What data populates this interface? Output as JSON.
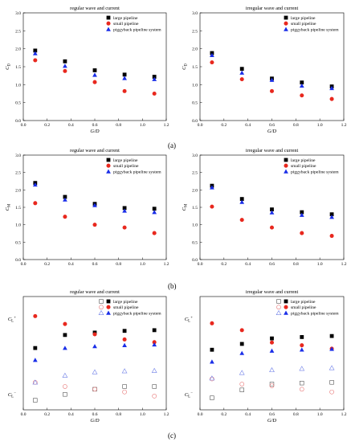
{
  "panel_labels": [
    "(a)",
    "(b)",
    "(c)"
  ],
  "chart_data": [
    {
      "type": "scatter",
      "row": "a",
      "title": "regular wave and current",
      "xlabel": "G/D",
      "ylabel": "C_D",
      "xlim": [
        0.0,
        1.2
      ],
      "ylim": [
        0.0,
        3.0
      ],
      "xticks": [
        "0.0",
        "0.2",
        "0.4",
        "0.6",
        "0.8",
        "1.0",
        "1.2"
      ],
      "yticks": [
        "0.0",
        "0.5",
        "1.0",
        "1.5",
        "2.0",
        "2.5",
        "3.0"
      ],
      "legend_position": "top-right",
      "x": [
        0.1,
        0.35,
        0.6,
        0.85,
        1.1
      ],
      "series": [
        {
          "name": "large pipeline",
          "marker": "square",
          "color": "#000000",
          "values": [
            1.95,
            1.65,
            1.4,
            1.28,
            1.22
          ]
        },
        {
          "name": "small pipeline",
          "marker": "circle",
          "color": "#e8281e",
          "values": [
            1.68,
            1.38,
            1.07,
            0.82,
            0.75
          ]
        },
        {
          "name": "piggyback pipeline system",
          "marker": "triangle",
          "color": "#1a2ee8",
          "values": [
            1.87,
            1.52,
            1.27,
            1.18,
            1.15
          ]
        }
      ]
    },
    {
      "type": "scatter",
      "row": "a",
      "title": "irregular wave and current",
      "xlabel": "G/D",
      "ylabel": "C_D",
      "xlim": [
        0.0,
        1.2
      ],
      "ylim": [
        0.0,
        3.0
      ],
      "xticks": [
        "0.0",
        "0.2",
        "0.4",
        "0.6",
        "0.8",
        "1.0",
        "1.2"
      ],
      "yticks": [
        "0.0",
        "0.5",
        "1.0",
        "1.5",
        "2.0",
        "2.5",
        "3.0"
      ],
      "legend_position": "top-right",
      "x": [
        0.1,
        0.35,
        0.6,
        0.85,
        1.1
      ],
      "series": [
        {
          "name": "large pipeline",
          "marker": "square",
          "color": "#000000",
          "values": [
            1.88,
            1.44,
            1.17,
            1.06,
            0.95
          ]
        },
        {
          "name": "small pipeline",
          "marker": "circle",
          "color": "#e8281e",
          "values": [
            1.62,
            1.15,
            0.82,
            0.7,
            0.6
          ]
        },
        {
          "name": "piggyback pipeline system",
          "marker": "triangle",
          "color": "#1a2ee8",
          "values": [
            1.82,
            1.33,
            1.13,
            0.97,
            0.9
          ]
        }
      ]
    },
    {
      "type": "scatter",
      "row": "b",
      "title": "regular wave and current",
      "xlabel": "",
      "ylabel": "C_M",
      "xlim": [
        0.0,
        1.2
      ],
      "ylim": [
        0.0,
        3.0
      ],
      "xticks": [
        "0.0",
        "0.2",
        "0.4",
        "0.6",
        "0.8",
        "1.0",
        "1.2"
      ],
      "yticks": [
        "0.0",
        "0.5",
        "1.0",
        "1.5",
        "2.0",
        "2.5",
        "3.0"
      ],
      "legend_position": "top-right",
      "x": [
        0.1,
        0.35,
        0.6,
        0.85,
        1.1
      ],
      "series": [
        {
          "name": "large pipeline",
          "marker": "square",
          "color": "#000000",
          "values": [
            2.2,
            1.8,
            1.6,
            1.48,
            1.46
          ]
        },
        {
          "name": "small pipeline",
          "marker": "circle",
          "color": "#e8281e",
          "values": [
            1.62,
            1.23,
            1.0,
            0.92,
            0.76
          ]
        },
        {
          "name": "piggyback pipeline system",
          "marker": "triangle",
          "color": "#1a2ee8",
          "values": [
            2.15,
            1.72,
            1.56,
            1.4,
            1.36
          ]
        }
      ]
    },
    {
      "type": "scatter",
      "row": "b",
      "title": "irregular wave and current",
      "xlabel": "",
      "ylabel": "C_M",
      "xlim": [
        0.0,
        1.2
      ],
      "ylim": [
        0.0,
        3.0
      ],
      "xticks": [
        "0.0",
        "0.2",
        "0.4",
        "0.6",
        "0.8",
        "1.0",
        "1.2"
      ],
      "yticks": [
        "0.0",
        "0.5",
        "1.0",
        "1.5",
        "2.0",
        "2.5",
        "3.0"
      ],
      "legend_position": "top-right",
      "x": [
        0.1,
        0.35,
        0.6,
        0.85,
        1.1
      ],
      "series": [
        {
          "name": "large pipeline",
          "marker": "square",
          "color": "#000000",
          "values": [
            2.12,
            1.74,
            1.44,
            1.36,
            1.3
          ]
        },
        {
          "name": "small pipeline",
          "marker": "circle",
          "color": "#e8281e",
          "values": [
            1.52,
            1.14,
            0.92,
            0.76,
            0.68
          ]
        },
        {
          "name": "piggyback pipeline system",
          "marker": "triangle",
          "color": "#1a2ee8",
          "values": [
            2.07,
            1.65,
            1.35,
            1.28,
            1.22
          ]
        }
      ]
    },
    {
      "type": "scatter",
      "row": "c",
      "title": "regular wave and current",
      "xlabel": "G/D",
      "ylabel_upper": "C_L+",
      "ylabel_lower": "C_L−",
      "xlim": [
        0.0,
        1.2
      ],
      "ylim": [
        -1.3,
        2.0
      ],
      "xticks": [
        "0.0",
        "0.2",
        "0.4",
        "0.6",
        "0.8",
        "1.0",
        "1.2"
      ],
      "yticks": [],
      "legend_position": "top-right",
      "x": [
        0.1,
        0.35,
        0.6,
        0.85,
        1.1
      ],
      "series": [
        {
          "name": "large pipeline",
          "marker": "square",
          "color": "#000000",
          "values": [
            0.5,
            0.88,
            0.95,
            1.0,
            1.02
          ]
        },
        {
          "name": "small pipeline",
          "marker": "circle",
          "color": "#e8281e",
          "values": [
            1.43,
            1.2,
            0.9,
            0.75,
            0.67
          ]
        },
        {
          "name": "piggyback pipeline system",
          "marker": "triangle",
          "color": "#1a2ee8",
          "values": [
            0.15,
            0.5,
            0.55,
            0.58,
            0.6
          ]
        },
        {
          "name": "large pipeline",
          "marker": "square-open",
          "color": "#555555",
          "values": [
            -1.02,
            -0.85,
            -0.7,
            -0.62,
            -0.62
          ]
        },
        {
          "name": "small pipeline",
          "marker": "circle-open",
          "color": "#e87878",
          "values": [
            -0.5,
            -0.62,
            -0.7,
            -0.78,
            -0.9
          ]
        },
        {
          "name": "piggyback pipeline system",
          "marker": "triangle-open",
          "color": "#7080e8",
          "values": [
            -0.5,
            -0.3,
            -0.2,
            -0.17,
            -0.16
          ]
        }
      ]
    },
    {
      "type": "scatter",
      "row": "c",
      "title": "irregular wave and current",
      "xlabel": "G/D",
      "ylabel_upper": "C_L+",
      "ylabel_lower": "C_L−",
      "xlim": [
        0.0,
        1.2
      ],
      "ylim": [
        -1.3,
        2.0
      ],
      "xticks": [
        "0.0",
        "0.2",
        "0.4",
        "0.6",
        "0.8",
        "1.0",
        "1.2"
      ],
      "yticks": [],
      "legend_position": "top-right",
      "x": [
        0.1,
        0.35,
        0.6,
        0.85,
        1.1
      ],
      "series": [
        {
          "name": "large pipeline",
          "marker": "square",
          "color": "#000000",
          "values": [
            0.45,
            0.62,
            0.78,
            0.82,
            0.85
          ]
        },
        {
          "name": "small pipeline",
          "marker": "circle",
          "color": "#e8281e",
          "values": [
            1.22,
            1.02,
            0.66,
            0.58,
            0.48
          ]
        },
        {
          "name": "piggyback pipeline system",
          "marker": "triangle",
          "color": "#1a2ee8",
          "values": [
            0.1,
            0.35,
            0.42,
            0.45,
            0.47
          ]
        },
        {
          "name": "large pipeline",
          "marker": "square-open",
          "color": "#555555",
          "values": [
            -0.95,
            -0.72,
            -0.55,
            -0.52,
            -0.5
          ]
        },
        {
          "name": "small pipeline",
          "marker": "circle-open",
          "color": "#e87878",
          "values": [
            -0.4,
            -0.55,
            -0.6,
            -0.7,
            -0.78
          ]
        },
        {
          "name": "piggyback pipeline system",
          "marker": "triangle-open",
          "color": "#7080e8",
          "values": [
            -0.38,
            -0.22,
            -0.14,
            -0.1,
            -0.08
          ]
        }
      ]
    }
  ]
}
